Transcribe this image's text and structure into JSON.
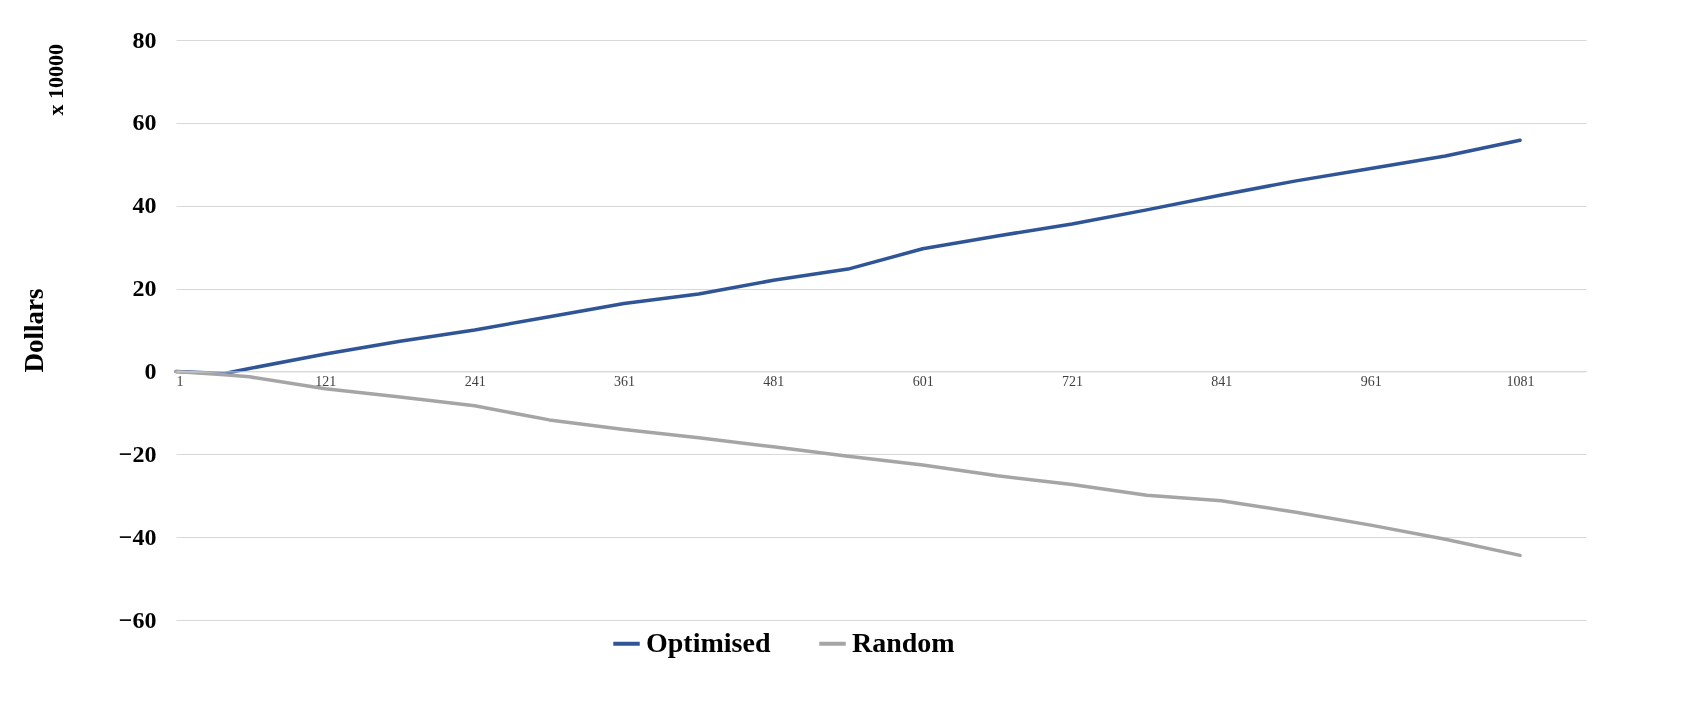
{
  "chart_data": {
    "type": "line",
    "ylabel": "Dollars",
    "annotations": [
      "x 10000"
    ],
    "xlim": [
      1,
      1134
    ],
    "xticks": [
      1,
      121,
      241,
      361,
      481,
      601,
      721,
      841,
      961,
      1081
    ],
    "ylim": [
      -60,
      80
    ],
    "yticks": [
      -60,
      -40,
      -20,
      0,
      20,
      40,
      60,
      80
    ],
    "grid": "y",
    "legend": "bottom",
    "x": [
      1,
      40,
      60,
      121,
      181,
      241,
      301,
      361,
      421,
      481,
      541,
      601,
      661,
      721,
      781,
      841,
      901,
      961,
      1021,
      1081
    ],
    "series": [
      {
        "name": "Optimised",
        "color": "#2f5597",
        "values": [
          0,
          -0.5,
          0.7,
          4.2,
          7.3,
          10,
          13.2,
          16.4,
          18.7,
          22,
          24.7,
          29.6,
          32.7,
          35.6,
          39,
          42.6,
          46,
          49,
          52,
          55.8
        ]
      },
      {
        "name": "Random",
        "color": "#a5a5a5",
        "values": [
          0,
          -0.8,
          -1.3,
          -4.2,
          -6.2,
          -8.3,
          -11.7,
          -14,
          -16,
          -18.2,
          -20.5,
          -22.6,
          -25.2,
          -27.3,
          -29.9,
          -31.2,
          -34,
          -37.1,
          -40.5,
          -44.4
        ]
      }
    ]
  }
}
